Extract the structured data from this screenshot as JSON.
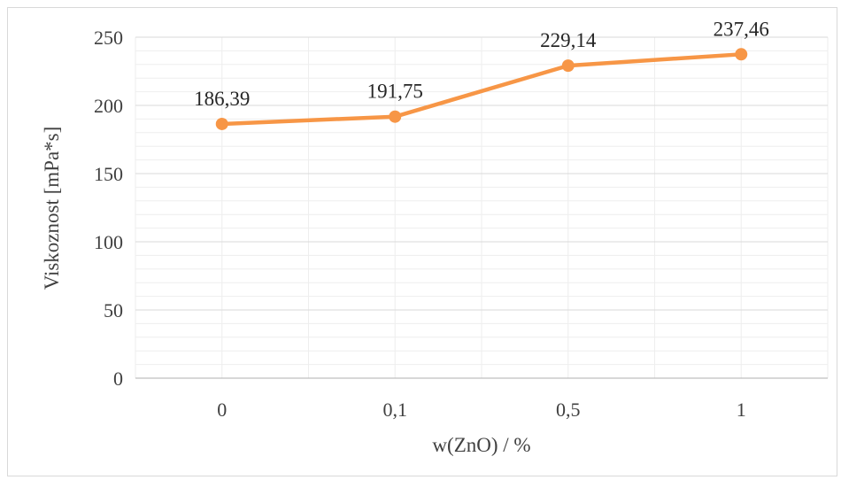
{
  "chart_data": {
    "type": "line",
    "categories": [
      "0",
      "0,1",
      "0,5",
      "1"
    ],
    "series": [
      {
        "values": [
          186.39,
          191.75,
          229.14,
          237.46
        ],
        "value_labels": [
          "186,39",
          "191,75",
          "229,14",
          "237,46"
        ],
        "color": "#f79646"
      }
    ],
    "title": "",
    "xlabel": "w(ZnO) / %",
    "ylabel": "Viskoznost [mPa*s]",
    "ylim": [
      0,
      250
    ],
    "yticks": [
      0,
      50,
      100,
      150,
      200,
      250
    ],
    "ytick_labels": [
      "0",
      "50",
      "100",
      "150",
      "200",
      "250"
    ],
    "grid": true,
    "minor_grid": true,
    "legend": "none"
  },
  "colors": {
    "major_grid": "#d9d9d9",
    "minor_grid": "#eeeeee",
    "axis": "#bfbfbf",
    "frame": "#d9d9d9"
  }
}
